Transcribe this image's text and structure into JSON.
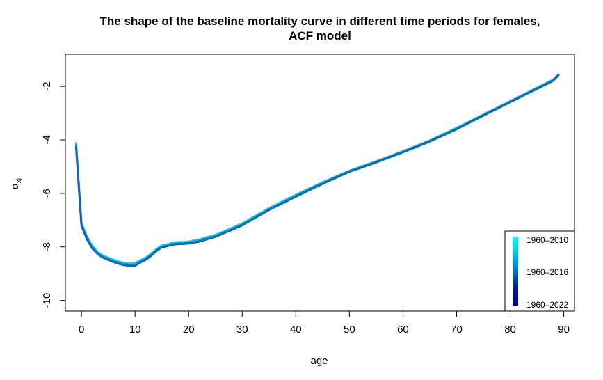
{
  "chart_data": {
    "type": "line",
    "title_line1": "The shape of the baseline mortality curve in different time periods for females,",
    "title_line2": "ACF model",
    "xlabel": "age",
    "ylabel_main": "α",
    "ylabel_sub": "xj",
    "xlim": [
      -3,
      92
    ],
    "ylim": [
      -10.4,
      -0.8
    ],
    "x_ticks": [
      0,
      10,
      20,
      30,
      40,
      50,
      60,
      70,
      80,
      90
    ],
    "x_tick_labels": [
      "0",
      "10",
      "20",
      "30",
      "40",
      "50",
      "60",
      "70",
      "80",
      "90"
    ],
    "y_ticks": [
      -10,
      -8,
      -6,
      -4,
      -2
    ],
    "y_tick_labels": [
      "-10",
      "-8",
      "-6",
      "-4",
      "-2"
    ],
    "legend": {
      "position": "bottom-right",
      "entries": [
        "1960–2010",
        "1960–2016",
        "1960–2022"
      ],
      "gradient_colors": [
        "#00ffff",
        "#00bfe6",
        "#0073c0",
        "#001a8c",
        "#00008b"
      ]
    },
    "series": [
      {
        "color": "#00e0f0",
        "x": [
          -1,
          0,
          1,
          2,
          3,
          4,
          5,
          6,
          7,
          8,
          9,
          10,
          11,
          12,
          13,
          14,
          15,
          16,
          17,
          18,
          19,
          20,
          22,
          25,
          28,
          30,
          35,
          40,
          45,
          50,
          55,
          60,
          65,
          70,
          75,
          80,
          85,
          88,
          89
        ],
        "y": [
          -4.12,
          -7.1,
          -7.6,
          -7.95,
          -8.18,
          -8.32,
          -8.4,
          -8.48,
          -8.55,
          -8.6,
          -8.62,
          -8.6,
          -8.5,
          -8.4,
          -8.25,
          -8.08,
          -7.95,
          -7.9,
          -7.85,
          -7.82,
          -7.82,
          -7.8,
          -7.72,
          -7.55,
          -7.3,
          -7.12,
          -6.55,
          -6.05,
          -5.58,
          -5.15,
          -4.8,
          -4.42,
          -4.02,
          -3.55,
          -3.05,
          -2.55,
          -2.05,
          -1.75,
          -1.55
        ]
      },
      {
        "color": "#00a6d9",
        "x": [
          -1,
          0,
          1,
          2,
          3,
          4,
          5,
          6,
          7,
          8,
          9,
          10,
          11,
          12,
          13,
          14,
          15,
          16,
          17,
          18,
          19,
          20,
          22,
          25,
          28,
          30,
          35,
          40,
          45,
          50,
          55,
          60,
          65,
          70,
          75,
          80,
          85,
          88,
          89
        ],
        "y": [
          -4.2,
          -7.15,
          -7.65,
          -8.0,
          -8.22,
          -8.36,
          -8.44,
          -8.52,
          -8.59,
          -8.64,
          -8.66,
          -8.65,
          -8.54,
          -8.44,
          -8.29,
          -8.12,
          -7.99,
          -7.94,
          -7.89,
          -7.86,
          -7.86,
          -7.84,
          -7.76,
          -7.59,
          -7.34,
          -7.16,
          -6.59,
          -6.09,
          -5.61,
          -5.17,
          -4.82,
          -4.44,
          -4.04,
          -3.58,
          -3.07,
          -2.57,
          -2.07,
          -1.77,
          -1.57
        ]
      },
      {
        "color": "#1f5fb0",
        "x": [
          -1,
          0,
          1,
          2,
          3,
          4,
          5,
          6,
          7,
          8,
          9,
          10,
          11,
          12,
          13,
          14,
          15,
          16,
          17,
          18,
          19,
          20,
          22,
          25,
          28,
          30,
          35,
          40,
          45,
          50,
          55,
          60,
          65,
          70,
          75,
          80,
          85,
          88,
          89
        ],
        "y": [
          -4.28,
          -7.2,
          -7.7,
          -8.05,
          -8.26,
          -8.4,
          -8.48,
          -8.56,
          -8.63,
          -8.68,
          -8.7,
          -8.7,
          -8.58,
          -8.48,
          -8.33,
          -8.15,
          -8.02,
          -7.97,
          -7.92,
          -7.89,
          -7.89,
          -7.87,
          -7.8,
          -7.62,
          -7.37,
          -7.19,
          -6.62,
          -6.12,
          -5.64,
          -5.19,
          -4.84,
          -4.46,
          -4.06,
          -3.6,
          -3.09,
          -2.59,
          -2.09,
          -1.79,
          -1.59
        ]
      }
    ]
  }
}
